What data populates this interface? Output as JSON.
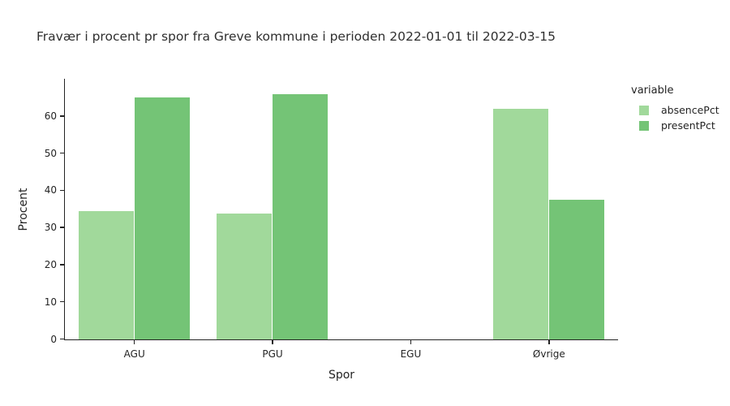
{
  "title": "Fravær i procent pr spor fra Greve kommune i perioden 2022-01-01 til 2022-03-15",
  "chart_data": {
    "type": "bar",
    "title": "Fravær i procent pr spor fra Greve kommune i perioden 2022-01-01 til 2022-03-15",
    "xlabel": "Spor",
    "ylabel": "Procent",
    "categories": [
      "AGU",
      "PGU",
      "EGU",
      "Øvrige"
    ],
    "series": [
      {
        "name": "absencePct",
        "color": "#a1d99b",
        "values": [
          34.5,
          33.9,
          0,
          62.0
        ]
      },
      {
        "name": "presentPct",
        "color": "#74c476",
        "values": [
          65.1,
          66.0,
          0,
          37.6
        ]
      }
    ],
    "ylim": [
      0,
      70
    ],
    "yticks": [
      0,
      10,
      20,
      30,
      40,
      50,
      60
    ],
    "grid": false,
    "legend": {
      "title": "variable",
      "position": "right-top"
    }
  },
  "colors": {
    "axis": "#242424",
    "text": "#242424",
    "background": "#ffffff"
  }
}
